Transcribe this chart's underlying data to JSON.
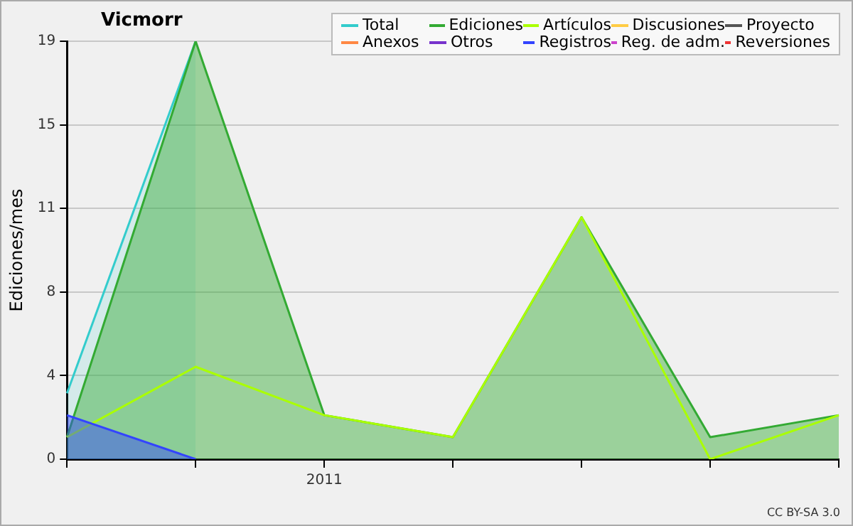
{
  "chart_data": {
    "type": "area",
    "title": "Vicmorr",
    "ylabel": "Ediciones/mes",
    "categories": [
      null,
      null,
      "2011",
      null,
      null,
      null,
      null
    ],
    "ylim": [
      0,
      19
    ],
    "yticks": [
      0,
      {
        "value": 3.8,
        "label": "4"
      },
      {
        "value": 7.6,
        "label": "8"
      },
      {
        "value": 11.4,
        "label": "11"
      },
      {
        "value": 15.2,
        "label": "15"
      },
      19
    ],
    "grid": "y",
    "legend": "top right",
    "annotations": [
      "CC BY-SA 3.0"
    ],
    "series": [
      {
        "name": "Total",
        "color": "#33cccc",
        "type": "area",
        "values": [
          3,
          19,
          null,
          null,
          null,
          null,
          null
        ]
      },
      {
        "name": "Ediciones",
        "color": "#33aa33",
        "type": "area",
        "values": [
          1,
          19,
          2,
          1,
          11,
          1,
          2
        ]
      },
      {
        "name": "Artículos",
        "color": "#aaff00",
        "type": "line",
        "values": [
          1,
          4.2,
          2,
          1,
          11,
          0,
          2
        ]
      },
      {
        "name": "Discusiones",
        "color": "#ffcc44",
        "type": "line",
        "values": [
          null,
          null,
          null,
          null,
          null,
          null,
          null
        ]
      },
      {
        "name": "Proyecto",
        "color": "#555555",
        "type": "line",
        "values": [
          null,
          null,
          null,
          null,
          null,
          null,
          null
        ]
      },
      {
        "name": "Anexos",
        "color": "#ff8844",
        "type": "line",
        "values": [
          null,
          null,
          null,
          null,
          null,
          null,
          null
        ]
      },
      {
        "name": "Otros",
        "color": "#7733cc",
        "type": "line",
        "values": [
          null,
          null,
          null,
          null,
          null,
          null,
          null
        ]
      },
      {
        "name": "Registros",
        "color": "#3344ff",
        "type": "area",
        "values": [
          2,
          0,
          null,
          null,
          null,
          null,
          null
        ]
      },
      {
        "name": "Reg. de adm.",
        "color": "#cc44cc",
        "type": "line",
        "values": [
          null,
          null,
          null,
          null,
          null,
          null,
          null
        ]
      },
      {
        "name": "Reversiones",
        "color": "#ee3333",
        "type": "line",
        "values": [
          null,
          null,
          null,
          null,
          null,
          null,
          null
        ]
      }
    ]
  }
}
